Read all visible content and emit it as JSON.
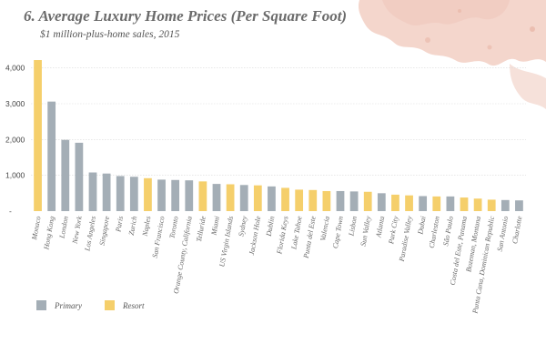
{
  "chart_data": {
    "type": "bar",
    "title": "6. Average Luxury Home Prices (Per Square Foot)",
    "subtitle": "$1 million-plus-home sales, 2015",
    "xlabel": "",
    "ylabel": "",
    "ylim": [
      0,
      4500
    ],
    "yticks": [
      {
        "value": 0,
        "label": "-"
      },
      {
        "value": 1000,
        "label": "1,000"
      },
      {
        "value": 2000,
        "label": "2,000"
      },
      {
        "value": 3000,
        "label": "3,000"
      },
      {
        "value": 4000,
        "label": "4,000"
      }
    ],
    "grid": true,
    "legend_placement": "bottom-left",
    "legend": [
      {
        "key": "primary",
        "label": "Primary",
        "color": "#a4aeb6"
      },
      {
        "key": "resort",
        "label": "Resort",
        "color": "#f5cf6b"
      }
    ],
    "categories": [
      "Monaco",
      "Hong Kong",
      "London",
      "New York",
      "Los Angeles",
      "Singapore",
      "Paris",
      "Zurich",
      "Naples",
      "San Francisco",
      "Toronto",
      "Orange County, California",
      "Telluride",
      "Miami",
      "US Virgin Islands",
      "Sydney",
      "Jackson Hole",
      "Dublin",
      "Florida Keys",
      "Lake Tahoe",
      "Punta del Este",
      "Valencia",
      "Cape Town",
      "Lisbon",
      "Sun Valley",
      "Atlanta",
      "Park City",
      "Paradise Valley",
      "Dubai",
      "Charleston",
      "São Paulo",
      "Costa del Este, Panama",
      "Bozeman, Montana",
      "Punta Cana, Dominican Republic",
      "San Antonio",
      "Charlotte"
    ],
    "values": [
      4220,
      3060,
      1990,
      1910,
      1080,
      1050,
      980,
      960,
      920,
      880,
      870,
      860,
      830,
      760,
      750,
      730,
      720,
      690,
      650,
      600,
      590,
      560,
      560,
      550,
      540,
      500,
      460,
      440,
      420,
      410,
      410,
      380,
      350,
      320,
      310,
      300
    ],
    "groups": [
      "resort",
      "primary",
      "primary",
      "primary",
      "primary",
      "primary",
      "primary",
      "primary",
      "resort",
      "primary",
      "primary",
      "primary",
      "resort",
      "primary",
      "resort",
      "primary",
      "resort",
      "primary",
      "resort",
      "resort",
      "resort",
      "resort",
      "primary",
      "primary",
      "resort",
      "primary",
      "resort",
      "resort",
      "primary",
      "resort",
      "primary",
      "resort",
      "resort",
      "resort",
      "primary",
      "primary"
    ]
  }
}
